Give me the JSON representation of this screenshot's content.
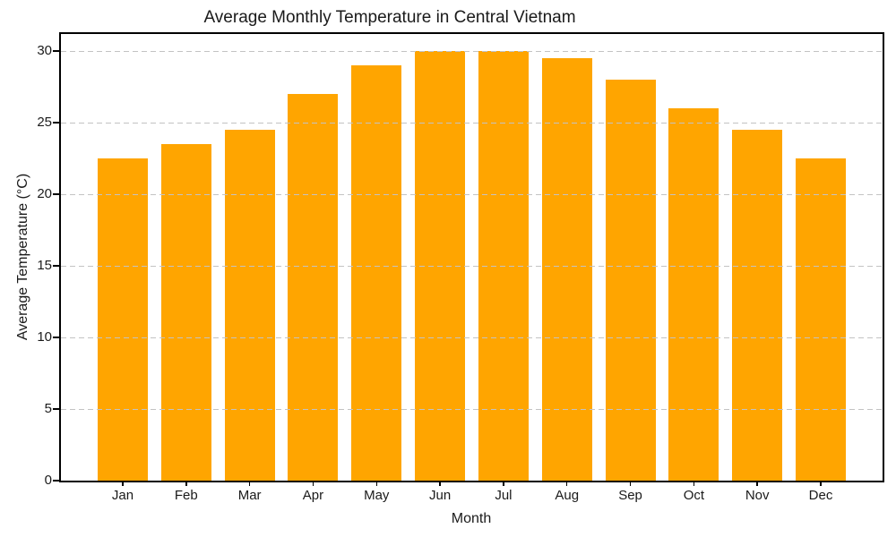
{
  "chart_data": {
    "type": "bar",
    "title": "Average Monthly Temperature in Central Vietnam",
    "xlabel": "Month",
    "ylabel": "Average Temperature (°C)",
    "categories": [
      "Jan",
      "Feb",
      "Mar",
      "Apr",
      "May",
      "Jun",
      "Jul",
      "Aug",
      "Sep",
      "Oct",
      "Nov",
      "Dec"
    ],
    "values": [
      22.5,
      23.5,
      24.5,
      27,
      29,
      30,
      30,
      29.5,
      28,
      26,
      24.5,
      22.5
    ],
    "yticks": [
      0,
      5,
      10,
      15,
      20,
      25,
      30
    ],
    "ylim": [
      0,
      31.2
    ],
    "bar_color": "#FFA500",
    "grid": {
      "axis": "y",
      "style": "dashed",
      "color": "#c3c3c3",
      "on": true
    },
    "spine_color": "#000000",
    "text_color": "#1a1a1a",
    "background": "#ffffff",
    "legend": "none"
  }
}
